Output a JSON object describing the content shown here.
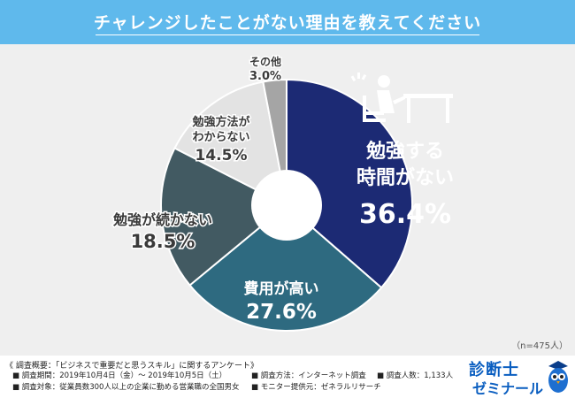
{
  "header": {
    "title": "チャレンジしたことがない理由を教えてください"
  },
  "chart_data": {
    "type": "pie",
    "title": "チャレンジしたことがない理由を教えてください",
    "n_label": "（n=475人）",
    "slices": [
      {
        "label_lines": [
          "勉強する",
          "時間がない"
        ],
        "value": 36.4,
        "value_text": "36.4%",
        "color": "#1c2a74"
      },
      {
        "label_lines": [
          "費用が高い"
        ],
        "value": 27.6,
        "value_text": "27.6%",
        "color": "#2e6a80"
      },
      {
        "label_lines": [
          "勉強が続かない"
        ],
        "value": 18.5,
        "value_text": "18.5%",
        "color": "#425a62"
      },
      {
        "label_lines": [
          "勉強方法が",
          "わからない"
        ],
        "value": 14.5,
        "value_text": "14.5%",
        "color": "#e3e3e3"
      },
      {
        "label_lines": [
          "その他"
        ],
        "value": 3.0,
        "value_text": "3.0%",
        "color": "#a5a5a5"
      }
    ],
    "start": "12 o'clock",
    "direction": "clockwise"
  },
  "footer": {
    "survey_title": "《 調査概要：「ビジネスで重要だと思うスキル」に関するアンケート》",
    "period": "■ 調査期間：2019年10月4日（金）～ 2019年10月5日（土）",
    "method": "■ 調査方法：インターネット調査",
    "count": "■ 調査人数：1,133人",
    "target": "■ 調査対象：従業員数300人以上の企業に勤める営業職の全国男女",
    "provider": "■ モニター提供元：ゼネラルリサーチ"
  },
  "logo": {
    "line1": "診断士",
    "line2": "ゼミナール"
  },
  "icons": {
    "study_desk": "person-at-desk-icon",
    "mascot": "owl-mascot-icon"
  }
}
